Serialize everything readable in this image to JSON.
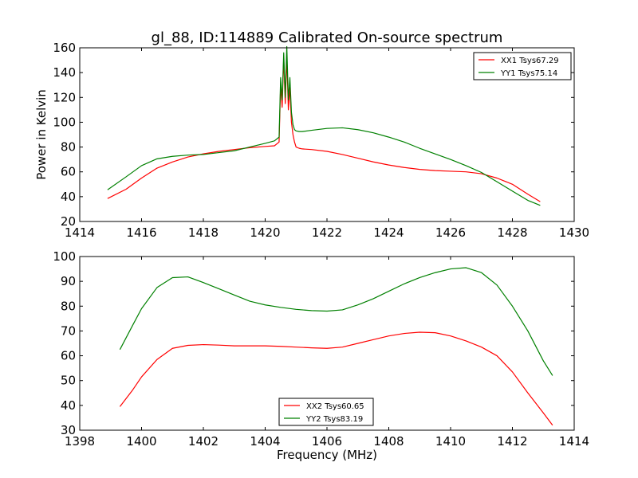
{
  "figure": {
    "title": "gl_88, ID:114889 Calibrated On-source spectrum"
  },
  "chart_data": [
    {
      "type": "line",
      "title": "gl_88, ID:114889 Calibrated On-source spectrum",
      "xlabel": "",
      "ylabel": "Power in Kelvin",
      "xlim": [
        1414,
        1430
      ],
      "ylim": [
        20,
        160
      ],
      "xticks": [
        1414,
        1416,
        1418,
        1420,
        1422,
        1424,
        1426,
        1428,
        1430
      ],
      "yticks": [
        20,
        40,
        60,
        80,
        100,
        120,
        140,
        160
      ],
      "grid": false,
      "legend": "top-right",
      "series": [
        {
          "name": "XX1 Tsys67.29",
          "color": "#ff0000",
          "x": [
            1414.9,
            1415.5,
            1416.0,
            1416.5,
            1417.0,
            1417.5,
            1418.0,
            1418.5,
            1419.0,
            1419.5,
            1420.0,
            1420.3,
            1420.45,
            1420.5,
            1420.55,
            1420.6,
            1420.65,
            1420.7,
            1420.75,
            1420.8,
            1420.85,
            1420.9,
            1420.95,
            1421.0,
            1421.1,
            1421.2,
            1421.5,
            1422.0,
            1422.5,
            1423.0,
            1423.5,
            1424.0,
            1424.5,
            1425.0,
            1425.5,
            1426.0,
            1426.5,
            1427.0,
            1427.5,
            1428.0,
            1428.5,
            1428.9
          ],
          "y": [
            38.5,
            46,
            55,
            63,
            68,
            72,
            74.5,
            76.5,
            78,
            79.5,
            80.5,
            81,
            84,
            130,
            112,
            152,
            115,
            153,
            110,
            128,
            100,
            90,
            84,
            80,
            79,
            78.5,
            78,
            76.5,
            74,
            71,
            68,
            65.5,
            63.5,
            62,
            61,
            60.5,
            60,
            58.5,
            55,
            50,
            42,
            36
          ]
        },
        {
          "name": "YY1 Tsys75.14",
          "color": "#008000",
          "x": [
            1414.9,
            1415.5,
            1416.0,
            1416.5,
            1417.0,
            1417.5,
            1418.0,
            1418.5,
            1419.0,
            1419.5,
            1420.0,
            1420.3,
            1420.45,
            1420.5,
            1420.55,
            1420.6,
            1420.65,
            1420.7,
            1420.75,
            1420.8,
            1420.85,
            1420.9,
            1420.95,
            1421.0,
            1421.1,
            1421.2,
            1421.5,
            1422.0,
            1422.5,
            1423.0,
            1423.5,
            1424.0,
            1424.5,
            1425.0,
            1425.5,
            1426.0,
            1426.5,
            1427.0,
            1427.5,
            1428.0,
            1428.5,
            1428.9
          ],
          "y": [
            45.5,
            56,
            65,
            70.5,
            72.5,
            73.5,
            74,
            75.5,
            77,
            80,
            83,
            85,
            88,
            136,
            118,
            156,
            120,
            161,
            118,
            136,
            108,
            98,
            94,
            93,
            92.5,
            92.5,
            93.5,
            95,
            95.5,
            94,
            91.5,
            88,
            84,
            79,
            74.5,
            70,
            65,
            59.5,
            52,
            44.5,
            37,
            33
          ]
        }
      ]
    },
    {
      "type": "line",
      "title": "",
      "xlabel": "Frequency (MHz)",
      "ylabel": "",
      "xlim": [
        1398,
        1414
      ],
      "ylim": [
        30,
        100
      ],
      "xticks": [
        1398,
        1400,
        1402,
        1404,
        1406,
        1408,
        1410,
        1412,
        1414
      ],
      "yticks": [
        30,
        40,
        50,
        60,
        70,
        80,
        90,
        100
      ],
      "grid": false,
      "legend": "lower-center",
      "series": [
        {
          "name": "XX2 Tsys60.65",
          "color": "#ff0000",
          "x": [
            1399.3,
            1399.7,
            1400.0,
            1400.5,
            1401.0,
            1401.5,
            1402.0,
            1402.5,
            1403.0,
            1403.5,
            1404.0,
            1404.5,
            1405.0,
            1405.5,
            1406.0,
            1406.5,
            1407.0,
            1407.5,
            1408.0,
            1408.5,
            1409.0,
            1409.5,
            1410.0,
            1410.5,
            1411.0,
            1411.5,
            1412.0,
            1412.5,
            1413.0,
            1413.3
          ],
          "y": [
            39.5,
            46,
            51.5,
            58.5,
            63,
            64.2,
            64.5,
            64.3,
            64,
            64,
            64,
            63.8,
            63.5,
            63.2,
            63,
            63.5,
            65,
            66.5,
            68,
            69,
            69.5,
            69.3,
            68,
            66,
            63.5,
            60,
            53.5,
            45,
            37,
            32
          ]
        },
        {
          "name": "YY2 Tsys83.19",
          "color": "#008000",
          "x": [
            1399.3,
            1399.7,
            1400.0,
            1400.5,
            1401.0,
            1401.5,
            1402.0,
            1402.5,
            1403.0,
            1403.5,
            1404.0,
            1404.5,
            1405.0,
            1405.5,
            1406.0,
            1406.5,
            1407.0,
            1407.5,
            1408.0,
            1408.5,
            1409.0,
            1409.5,
            1410.0,
            1410.5,
            1411.0,
            1411.5,
            1412.0,
            1412.5,
            1413.0,
            1413.3
          ],
          "y": [
            62.5,
            72,
            79,
            87.5,
            91.5,
            91.8,
            89.5,
            87,
            84.5,
            82,
            80.5,
            79.5,
            78.7,
            78.2,
            78,
            78.5,
            80.5,
            83,
            86,
            89,
            91.5,
            93.5,
            95,
            95.5,
            93.5,
            88.5,
            80,
            70,
            58,
            52
          ]
        }
      ]
    }
  ]
}
